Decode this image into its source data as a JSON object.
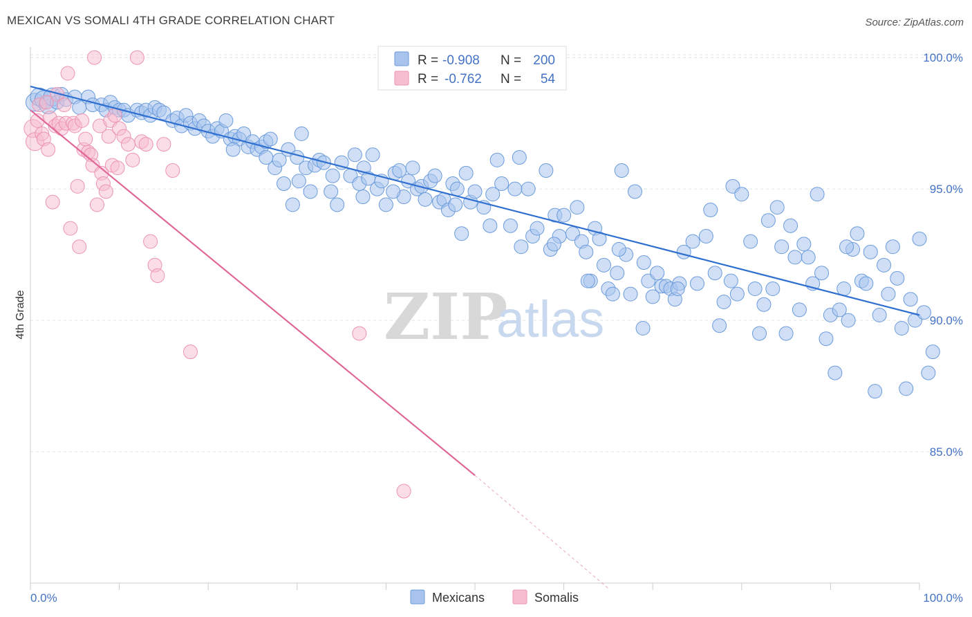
{
  "title": "MEXICAN VS SOMALI 4TH GRADE CORRELATION CHART",
  "source": "Source: ZipAtlas.com",
  "watermark": {
    "zip": "ZIP",
    "atlas": "atlas"
  },
  "colors": {
    "mexicans_fill": "#a9c4ec",
    "mexicans_stroke": "#6a9bdc",
    "mexicans_line": "#2f6fd0",
    "somalis_fill": "#f6bcd0",
    "somalis_stroke": "#ec93b2",
    "somalis_line": "#e06896",
    "grid": "#e2e2e2",
    "tick_text": "#4472c4"
  },
  "legend": {
    "rows": [
      {
        "r_label": "R =",
        "r_value": "-0.908",
        "n_label": "N =",
        "n_value": "200"
      },
      {
        "r_label": "R =",
        "r_value": "-0.762",
        "n_label": "N =",
        "n_value": "54"
      }
    ]
  },
  "chart_data": {
    "type": "scatter",
    "title": "MEXICAN VS SOMALI 4TH GRADE CORRELATION CHART",
    "xlabel": "",
    "ylabel": "4th Grade",
    "xlim": [
      0,
      100
    ],
    "ylim": [
      80,
      100.4
    ],
    "x_tick_labels": [
      "0.0%",
      "100.0%"
    ],
    "y_ticks": [
      85,
      90,
      95,
      100
    ],
    "y_tick_labels": [
      "85.0%",
      "90.0%",
      "95.0%",
      "100.0%"
    ],
    "grid": true,
    "legend_position": "bottom",
    "series": [
      {
        "name": "Mexicans",
        "r": -0.908,
        "n": 200,
        "trend": {
          "x0": 0,
          "y0": 98.9,
          "x1": 100,
          "y1": 90.2
        },
        "points": [
          [
            0.5,
            98.3
          ],
          [
            1.0,
            98.5
          ],
          [
            1.5,
            98.4
          ],
          [
            2.0,
            98.2
          ],
          [
            2.5,
            98.5
          ],
          [
            3.0,
            98.3
          ],
          [
            3.5,
            98.6
          ],
          [
            4.0,
            98.4
          ],
          [
            5.0,
            98.5
          ],
          [
            5.5,
            98.1
          ],
          [
            6.5,
            98.5
          ],
          [
            7.0,
            98.2
          ],
          [
            8.0,
            98.2
          ],
          [
            8.5,
            98.0
          ],
          [
            9.0,
            98.3
          ],
          [
            9.5,
            98.1
          ],
          [
            10.0,
            98.0
          ],
          [
            10.5,
            98.0
          ],
          [
            11.0,
            97.8
          ],
          [
            12.0,
            98.0
          ],
          [
            12.5,
            97.9
          ],
          [
            13.0,
            98.0
          ],
          [
            13.5,
            97.8
          ],
          [
            14.0,
            98.1
          ],
          [
            14.5,
            98.0
          ],
          [
            15.0,
            97.9
          ],
          [
            16.0,
            97.6
          ],
          [
            16.5,
            97.7
          ],
          [
            17.0,
            97.4
          ],
          [
            17.5,
            97.8
          ],
          [
            18.0,
            97.5
          ],
          [
            18.5,
            97.3
          ],
          [
            19.0,
            97.6
          ],
          [
            19.5,
            97.4
          ],
          [
            20.0,
            97.2
          ],
          [
            20.5,
            97.0
          ],
          [
            21.0,
            97.3
          ],
          [
            21.5,
            97.2
          ],
          [
            22.0,
            97.6
          ],
          [
            22.5,
            96.9
          ],
          [
            23.0,
            97.0
          ],
          [
            23.5,
            96.9
          ],
          [
            24.0,
            97.1
          ],
          [
            24.5,
            96.6
          ],
          [
            25.0,
            96.8
          ],
          [
            25.5,
            96.5
          ],
          [
            26.0,
            96.6
          ],
          [
            26.5,
            96.8
          ],
          [
            27.0,
            96.9
          ],
          [
            27.5,
            95.8
          ],
          [
            28.0,
            96.1
          ],
          [
            28.5,
            95.2
          ],
          [
            29.0,
            96.5
          ],
          [
            29.5,
            94.4
          ],
          [
            30.0,
            96.2
          ],
          [
            30.5,
            97.1
          ],
          [
            31.0,
            95.8
          ],
          [
            31.5,
            94.9
          ],
          [
            32.0,
            95.9
          ],
          [
            32.5,
            96.1
          ],
          [
            33.0,
            96.0
          ],
          [
            34.0,
            95.5
          ],
          [
            34.5,
            94.4
          ],
          [
            35.0,
            96.0
          ],
          [
            36.0,
            95.5
          ],
          [
            36.5,
            96.3
          ],
          [
            37.0,
            95.2
          ],
          [
            37.5,
            95.8
          ],
          [
            38.0,
            95.4
          ],
          [
            38.5,
            96.3
          ],
          [
            39.0,
            95.0
          ],
          [
            39.5,
            95.3
          ],
          [
            40.0,
            94.4
          ],
          [
            41.0,
            95.6
          ],
          [
            41.5,
            95.7
          ],
          [
            42.0,
            94.7
          ],
          [
            42.5,
            95.3
          ],
          [
            43.0,
            95.8
          ],
          [
            43.5,
            95.0
          ],
          [
            44.0,
            95.1
          ],
          [
            45.0,
            95.3
          ],
          [
            45.5,
            95.5
          ],
          [
            46.0,
            94.5
          ],
          [
            46.5,
            94.6
          ],
          [
            47.0,
            94.2
          ],
          [
            47.5,
            95.2
          ],
          [
            48.0,
            95.0
          ],
          [
            48.5,
            93.3
          ],
          [
            49.0,
            95.6
          ],
          [
            49.5,
            94.5
          ],
          [
            50.0,
            94.9
          ],
          [
            51.0,
            94.3
          ],
          [
            52.0,
            94.8
          ],
          [
            52.5,
            96.1
          ],
          [
            53.0,
            95.2
          ],
          [
            54.0,
            93.6
          ],
          [
            54.5,
            95.0
          ],
          [
            55.0,
            96.2
          ],
          [
            56.0,
            95.0
          ],
          [
            56.5,
            93.2
          ],
          [
            57.0,
            93.5
          ],
          [
            58.0,
            95.7
          ],
          [
            58.5,
            92.7
          ],
          [
            59.0,
            94.0
          ],
          [
            59.5,
            93.2
          ],
          [
            60.0,
            94.0
          ],
          [
            61.0,
            93.3
          ],
          [
            61.5,
            94.3
          ],
          [
            62.0,
            93.0
          ],
          [
            62.5,
            92.6
          ],
          [
            63.0,
            91.5
          ],
          [
            63.5,
            93.5
          ],
          [
            64.0,
            93.1
          ],
          [
            64.5,
            92.1
          ],
          [
            65.0,
            91.2
          ],
          [
            65.5,
            91.0
          ],
          [
            66.0,
            91.8
          ],
          [
            66.5,
            95.7
          ],
          [
            67.0,
            92.5
          ],
          [
            67.5,
            91.0
          ],
          [
            68.0,
            94.9
          ],
          [
            69.0,
            92.2
          ],
          [
            69.5,
            91.5
          ],
          [
            70.0,
            90.9
          ],
          [
            70.5,
            91.8
          ],
          [
            71.0,
            91.3
          ],
          [
            71.5,
            91.3
          ],
          [
            72.0,
            91.2
          ],
          [
            72.5,
            90.8
          ],
          [
            73.0,
            91.4
          ],
          [
            73.5,
            92.6
          ],
          [
            74.5,
            93.0
          ],
          [
            75.0,
            91.4
          ],
          [
            76.0,
            93.2
          ],
          [
            76.5,
            94.2
          ],
          [
            77.0,
            91.8
          ],
          [
            77.5,
            89.8
          ],
          [
            78.0,
            90.7
          ],
          [
            79.0,
            95.1
          ],
          [
            79.5,
            91.0
          ],
          [
            80.0,
            94.8
          ],
          [
            81.0,
            93.0
          ],
          [
            81.5,
            91.2
          ],
          [
            82.0,
            89.5
          ],
          [
            82.5,
            90.6
          ],
          [
            83.0,
            93.8
          ],
          [
            83.5,
            91.2
          ],
          [
            84.0,
            94.3
          ],
          [
            84.5,
            92.8
          ],
          [
            85.0,
            89.5
          ],
          [
            85.5,
            93.6
          ],
          [
            86.0,
            92.4
          ],
          [
            86.5,
            90.4
          ],
          [
            87.0,
            92.9
          ],
          [
            87.5,
            92.4
          ],
          [
            88.0,
            91.4
          ],
          [
            88.5,
            94.8
          ],
          [
            89.0,
            91.8
          ],
          [
            89.5,
            89.3
          ],
          [
            90.0,
            90.2
          ],
          [
            90.5,
            88.0
          ],
          [
            91.0,
            90.4
          ],
          [
            91.5,
            91.2
          ],
          [
            92.0,
            90.0
          ],
          [
            92.5,
            92.7
          ],
          [
            93.0,
            93.3
          ],
          [
            93.5,
            91.5
          ],
          [
            94.0,
            91.4
          ],
          [
            94.5,
            92.6
          ],
          [
            95.0,
            87.3
          ],
          [
            95.5,
            90.2
          ],
          [
            96.0,
            92.1
          ],
          [
            96.5,
            91.0
          ],
          [
            97.0,
            92.8
          ],
          [
            97.5,
            91.6
          ],
          [
            98.0,
            89.7
          ],
          [
            98.5,
            87.4
          ],
          [
            99.0,
            90.8
          ],
          [
            99.5,
            90.0
          ],
          [
            100.0,
            93.1
          ],
          [
            100.5,
            90.3
          ],
          [
            101.0,
            88.0
          ],
          [
            101.5,
            88.8
          ],
          [
            91.8,
            92.8
          ],
          [
            78.8,
            91.5
          ],
          [
            72.8,
            91.2
          ],
          [
            68.9,
            89.7
          ],
          [
            66.2,
            92.7
          ],
          [
            62.7,
            91.5
          ],
          [
            58.9,
            92.9
          ],
          [
            55.2,
            92.8
          ],
          [
            51.7,
            93.6
          ],
          [
            47.8,
            94.4
          ],
          [
            44.4,
            94.6
          ],
          [
            40.8,
            94.9
          ],
          [
            37.4,
            94.7
          ],
          [
            33.8,
            94.9
          ],
          [
            30.2,
            95.3
          ],
          [
            26.5,
            96.2
          ],
          [
            22.8,
            96.5
          ]
        ]
      },
      {
        "name": "Somalis",
        "r": -0.762,
        "n": 54,
        "trend": {
          "x0": 0,
          "y0": 98.0,
          "x1": 50,
          "y1": 84.1,
          "dash_x1": 65,
          "dash_y1": 79.8
        },
        "points": [
          [
            0.3,
            97.3
          ],
          [
            0.5,
            96.8
          ],
          [
            0.8,
            97.6
          ],
          [
            1.0,
            98.2
          ],
          [
            1.3,
            97.1
          ],
          [
            1.5,
            96.9
          ],
          [
            1.8,
            98.3
          ],
          [
            2.0,
            96.5
          ],
          [
            2.2,
            97.7
          ],
          [
            2.5,
            94.5
          ],
          [
            2.8,
            97.4
          ],
          [
            3.0,
            98.6
          ],
          [
            3.2,
            97.5
          ],
          [
            3.5,
            97.3
          ],
          [
            3.8,
            98.2
          ],
          [
            4.0,
            97.5
          ],
          [
            4.2,
            99.4
          ],
          [
            4.5,
            93.5
          ],
          [
            4.8,
            97.5
          ],
          [
            5.0,
            97.4
          ],
          [
            5.3,
            95.1
          ],
          [
            5.5,
            92.8
          ],
          [
            5.8,
            97.6
          ],
          [
            6.0,
            96.5
          ],
          [
            6.2,
            96.9
          ],
          [
            6.5,
            96.4
          ],
          [
            6.8,
            96.3
          ],
          [
            7.0,
            95.9
          ],
          [
            7.2,
            100.0
          ],
          [
            7.5,
            94.4
          ],
          [
            7.8,
            97.4
          ],
          [
            8.0,
            95.6
          ],
          [
            8.2,
            95.2
          ],
          [
            8.5,
            94.9
          ],
          [
            8.8,
            97.0
          ],
          [
            9.0,
            97.6
          ],
          [
            9.2,
            95.9
          ],
          [
            9.5,
            97.8
          ],
          [
            9.8,
            95.8
          ],
          [
            10.0,
            97.3
          ],
          [
            10.5,
            97.0
          ],
          [
            11.0,
            96.7
          ],
          [
            11.5,
            96.1
          ],
          [
            12.0,
            100.0
          ],
          [
            12.5,
            96.8
          ],
          [
            13.0,
            96.7
          ],
          [
            13.5,
            93.0
          ],
          [
            14.0,
            92.1
          ],
          [
            14.3,
            91.7
          ],
          [
            15.0,
            96.7
          ],
          [
            16.0,
            95.7
          ],
          [
            18.0,
            88.8
          ],
          [
            37.0,
            89.5
          ],
          [
            42.0,
            83.5
          ]
        ]
      }
    ]
  },
  "bottom_legend": {
    "items": [
      {
        "label": "Mexicans"
      },
      {
        "label": "Somalis"
      }
    ]
  }
}
